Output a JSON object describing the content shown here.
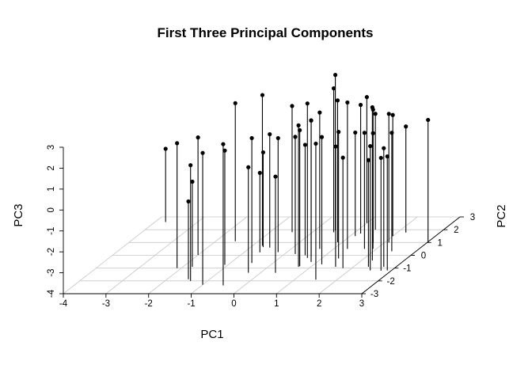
{
  "chart_data": {
    "type": "scatter3d",
    "title": "First Three Principal Components",
    "xlabel": "PC1",
    "ylabel": "PC2",
    "zlabel": "PC3",
    "xlim": [
      -4,
      3
    ],
    "ylim": [
      -3,
      3
    ],
    "zlim": [
      -4,
      3
    ],
    "x_ticks": [
      -4,
      -3,
      -2,
      -1,
      0,
      1,
      2,
      3
    ],
    "y_ticks": [
      -3,
      -2,
      -1,
      0,
      1,
      2,
      3
    ],
    "z_ticks": [
      -4,
      -3,
      -2,
      -1,
      0,
      1,
      2,
      3
    ],
    "grid": true,
    "points": [
      {
        "x": -3.75,
        "y": 2.6,
        "z": -0.5
      },
      {
        "x": -0.63,
        "y": 0.23,
        "z": -0.2
      },
      {
        "x": -1.78,
        "y": -0.9,
        "z": 0.07
      },
      {
        "x": -2.0,
        "y": 0.02,
        "z": 1.62
      },
      {
        "x": -2.1,
        "y": -1.0,
        "z": 1.97
      },
      {
        "x": -1.54,
        "y": 1.1,
        "z": 2.6
      },
      {
        "x": -1.5,
        "y": -1.87,
        "z": -0.28
      },
      {
        "x": -1.4,
        "y": -2.0,
        "z": 1.53
      },
      {
        "x": -1.08,
        "y": -0.74,
        "z": 1.46
      },
      {
        "x": -0.71,
        "y": 0.64,
        "z": 0.53
      },
      {
        "x": -1.0,
        "y": -2.3,
        "z": 2.3
      },
      {
        "x": -0.5,
        "y": -0.6,
        "z": 1.97
      },
      {
        "x": -0.29,
        "y": -1.36,
        "z": 1.04
      },
      {
        "x": -0.48,
        "y": 1.81,
        "z": 2.03
      },
      {
        "x": -0.77,
        "y": 0.75,
        "z": 3.2
      },
      {
        "x": -0.54,
        "y": 0.6,
        "z": 1.42
      },
      {
        "x": -0.21,
        "y": 0.25,
        "z": 1.45
      },
      {
        "x": -0.5,
        "y": -2.35,
        "z": 2.75
      },
      {
        "x": 0.25,
        "y": 0.1,
        "z": 1.6
      },
      {
        "x": 0.35,
        "y": -1.37,
        "z": 0.6
      },
      {
        "x": 0.5,
        "y": 1.8,
        "z": 2.88
      },
      {
        "x": 0.48,
        "y": 1.95,
        "z": 3.43
      },
      {
        "x": 0.67,
        "y": 0.5,
        "z": 2.52
      },
      {
        "x": 0.52,
        "y": 0.0,
        "z": 1.28
      },
      {
        "x": 0.65,
        "y": -0.2,
        "z": 3.38
      },
      {
        "x": 0.71,
        "y": -0.9,
        "z": 2.76
      },
      {
        "x": 0.7,
        "y": -0.1,
        "z": 2.5
      },
      {
        "x": 0.86,
        "y": -0.52,
        "z": 2.77
      },
      {
        "x": 0.72,
        "y": -0.85,
        "z": 2.5
      },
      {
        "x": 1.0,
        "y": 2.52,
        "z": 2.02
      },
      {
        "x": 0.89,
        "y": 1.02,
        "z": 2.78
      },
      {
        "x": 1.12,
        "y": 1.5,
        "z": 0.95
      },
      {
        "x": 1.17,
        "y": 1.7,
        "z": 2.15
      },
      {
        "x": 1.32,
        "y": 0.5,
        "z": 3.0
      },
      {
        "x": 1.18,
        "y": -0.7,
        "z": 2.08
      },
      {
        "x": 1.4,
        "y": -0.25,
        "z": 2.05
      },
      {
        "x": 1.73,
        "y": 1.0,
        "z": 2.35
      },
      {
        "x": 1.58,
        "y": -0.9,
        "z": 1.75
      },
      {
        "x": 1.5,
        "y": -1.9,
        "z": 2.5
      },
      {
        "x": 1.4,
        "y": 2.0,
        "z": 1.54
      },
      {
        "x": 2.0,
        "y": 1.5,
        "z": 1.79
      },
      {
        "x": 1.72,
        "y": 0.5,
        "z": 1.55
      },
      {
        "x": 1.92,
        "y": 0.5,
        "z": 1.53
      },
      {
        "x": 1.79,
        "y": -1.0,
        "z": 1.28
      },
      {
        "x": 2.2,
        "y": 1.78,
        "z": 1.07
      },
      {
        "x": 2.1,
        "y": 1.0,
        "z": 2.15
      },
      {
        "x": 2.25,
        "y": -0.4,
        "z": 3.32
      },
      {
        "x": 2.43,
        "y": 0.32,
        "z": 1.66
      },
      {
        "x": 2.35,
        "y": -0.9,
        "z": 1.1
      },
      {
        "x": 2.5,
        "y": -1.18,
        "z": 1.94
      },
      {
        "x": 2.71,
        "y": -0.9,
        "z": 1.67
      },
      {
        "x": 2.76,
        "y": -1.2,
        "z": 1.39
      },
      {
        "x": 2.9,
        "y": -1.18,
        "z": 1.45
      },
      {
        "x": 3.0,
        "y": 1.05,
        "z": 1.83
      }
    ]
  }
}
